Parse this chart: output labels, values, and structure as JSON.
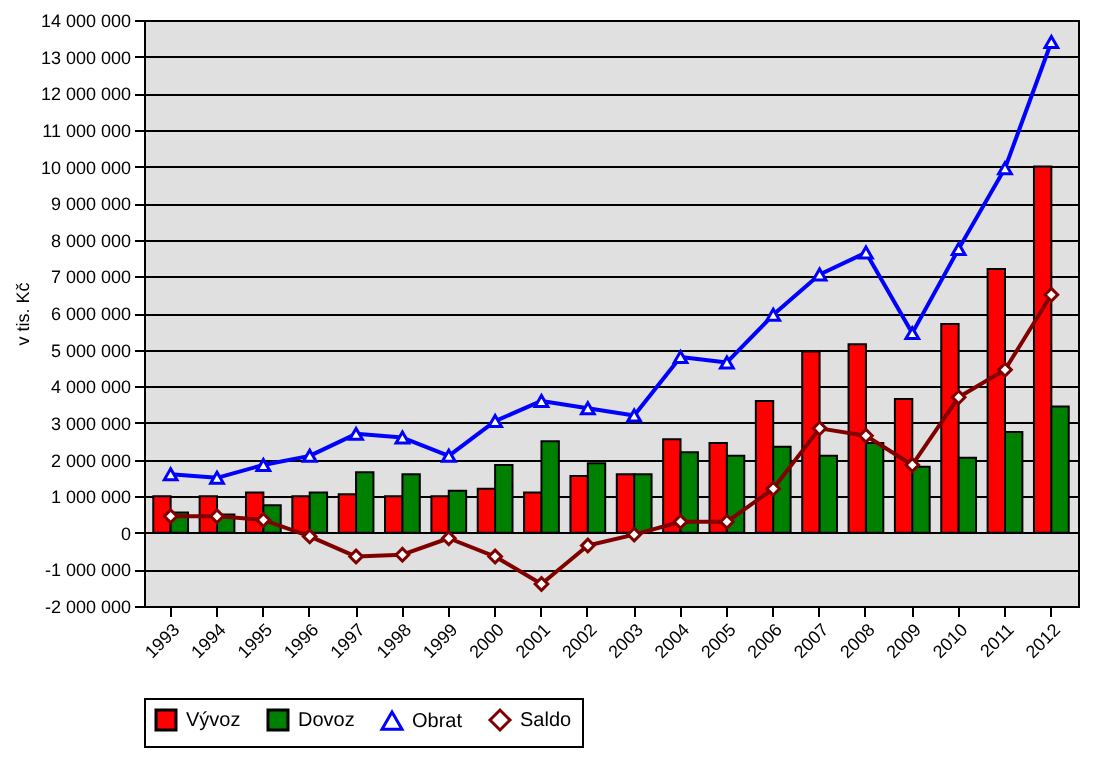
{
  "chart_data": {
    "type": "bar",
    "ylabel": "v tis. Kč",
    "categories": [
      "1993",
      "1994",
      "1995",
      "1996",
      "1997",
      "1998",
      "1999",
      "2000",
      "2001",
      "2002",
      "2003",
      "2004",
      "2005",
      "2006",
      "2007",
      "2008",
      "2009",
      "2010",
      "2011",
      "2012"
    ],
    "series": [
      {
        "name": "Vývoz",
        "type": "bar",
        "color": "#ff0000",
        "values": [
          1000000,
          1000000,
          1100000,
          1000000,
          1050000,
          1000000,
          1000000,
          1200000,
          1100000,
          1550000,
          1600000,
          2550000,
          2450000,
          3600000,
          4950000,
          5150000,
          3650000,
          5700000,
          7200000,
          10000000
        ]
      },
      {
        "name": "Dovoz",
        "type": "bar",
        "color": "#008000",
        "values": [
          550000,
          500000,
          750000,
          1100000,
          1650000,
          1600000,
          1150000,
          1850000,
          2500000,
          1900000,
          1600000,
          2200000,
          2100000,
          2350000,
          2100000,
          2450000,
          1800000,
          2050000,
          2750000,
          3450000
        ]
      },
      {
        "name": "Obrat",
        "type": "line",
        "color": "#0000ff",
        "marker": "triangle",
        "values": [
          1600000,
          1500000,
          1850000,
          2100000,
          2700000,
          2600000,
          2100000,
          3050000,
          3600000,
          3400000,
          3200000,
          4800000,
          4650000,
          5950000,
          7050000,
          7650000,
          5450000,
          7750000,
          9950000,
          13400000
        ]
      },
      {
        "name": "Saldo",
        "type": "line",
        "color": "#800000",
        "marker": "diamond",
        "values": [
          450000,
          450000,
          350000,
          -100000,
          -650000,
          -600000,
          -150000,
          -650000,
          -1400000,
          -350000,
          -50000,
          300000,
          300000,
          1200000,
          2850000,
          2650000,
          1850000,
          3700000,
          4450000,
          6500000
        ]
      }
    ],
    "ylim": [
      -2000000,
      14000000
    ],
    "yticks": [
      {
        "value": -2000000,
        "label": "-2 000 000"
      },
      {
        "value": -1000000,
        "label": "-1 000 000"
      },
      {
        "value": 0,
        "label": "0"
      },
      {
        "value": 1000000,
        "label": "1 000 000"
      },
      {
        "value": 2000000,
        "label": "2 000 000"
      },
      {
        "value": 3000000,
        "label": "3 000 000"
      },
      {
        "value": 4000000,
        "label": "4 000 000"
      },
      {
        "value": 5000000,
        "label": "5 000 000"
      },
      {
        "value": 6000000,
        "label": "6 000 000"
      },
      {
        "value": 7000000,
        "label": "7 000 000"
      },
      {
        "value": 8000000,
        "label": "8 000 000"
      },
      {
        "value": 9000000,
        "label": "9 000 000"
      },
      {
        "value": 10000000,
        "label": "10 000 000"
      },
      {
        "value": 11000000,
        "label": "11 000 000"
      },
      {
        "value": 12000000,
        "label": "12 000 000"
      },
      {
        "value": 13000000,
        "label": "13 000 000"
      },
      {
        "value": 14000000,
        "label": "14 000 000"
      }
    ],
    "grid": "y",
    "legend": "bottom"
  }
}
